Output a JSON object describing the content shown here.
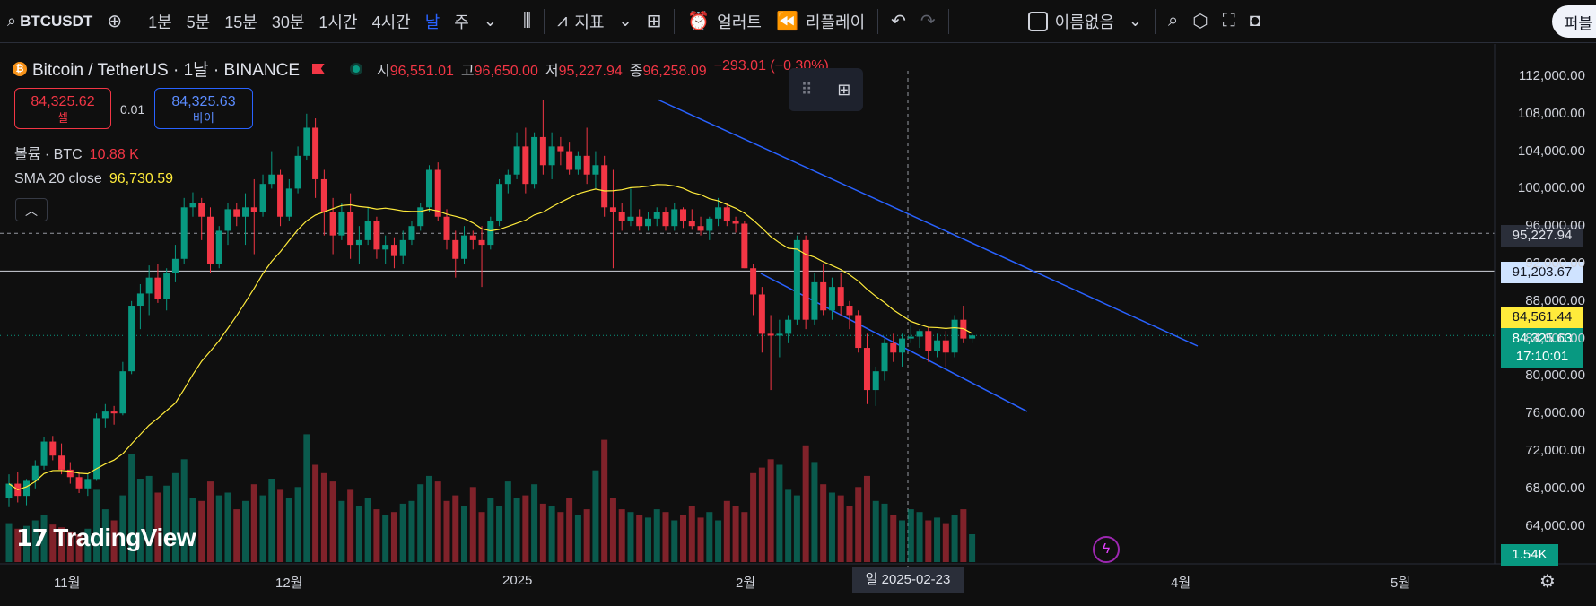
{
  "toolbar": {
    "symbol": "BTCUSDT",
    "intervals": [
      "1분",
      "5분",
      "15분",
      "30분",
      "1시간",
      "4시간",
      "날",
      "주"
    ],
    "active_interval": "날",
    "indicators_label": "지표",
    "alert_label": "얼러트",
    "replay_label": "리플레이",
    "layout_name": "이름없음",
    "publish_label": "퍼블"
  },
  "legend": {
    "title": "Bitcoin / TetherUS · 1날 · BINANCE",
    "open_label": "시",
    "open": "96,551.01",
    "high_label": "고",
    "high": "96,650.00",
    "low_label": "저",
    "low": "95,227.94",
    "close_label": "종",
    "close": "96,258.09",
    "change": "−293.01 (−0.30%)"
  },
  "trade": {
    "sell_price": "84,325.62",
    "sell_label": "셀",
    "spread": "0.01",
    "buy_price": "84,325.63",
    "buy_label": "바이"
  },
  "volume": {
    "label": "볼륨 · BTC",
    "value": "10.88 K"
  },
  "sma": {
    "label": "SMA 20 close",
    "value": "96,730.59"
  },
  "price_axis": {
    "labels": [
      "112,000.00",
      "108,000.00",
      "104,000.00",
      "100,000.00",
      "96,000.00",
      "92,000.00",
      "88,000.00",
      "84,000.00",
      "80,000.00",
      "76,000.00",
      "72,000.00",
      "68,000.00",
      "64,000.00"
    ],
    "crosshair_price": "95,227.94",
    "hline_price": "91,203.67",
    "sma_price": "84,561.44",
    "last_price": "84,325.63",
    "countdown": "17:10:01",
    "volume_tag": "1.54K"
  },
  "time_axis": {
    "labels": [
      "11월",
      "12월",
      "2025",
      "2월",
      "4월",
      "5월"
    ],
    "crosshair_date": "일 2025-02-23"
  },
  "branding": {
    "logo_text": "TradingView"
  },
  "colors": {
    "bg": "#0f0f0f",
    "up": "#089981",
    "down": "#f23645",
    "sma": "#ffeb3b",
    "trendline": "#2962ff",
    "accent": "#2962ff"
  },
  "chart_data": {
    "type": "candlestick",
    "symbol": "Bitcoin / TetherUS",
    "interval": "1D",
    "exchange": "BINANCE",
    "ylim": [
      62000,
      114000
    ],
    "candles": [
      {
        "o": 67000,
        "h": 69500,
        "l": 66000,
        "c": 68500
      },
      {
        "o": 68500,
        "h": 69800,
        "l": 66500,
        "c": 67200
      },
      {
        "o": 67200,
        "h": 69000,
        "l": 66200,
        "c": 68800
      },
      {
        "o": 68800,
        "h": 71000,
        "l": 68000,
        "c": 70400
      },
      {
        "o": 70400,
        "h": 73500,
        "l": 70000,
        "c": 73000
      },
      {
        "o": 73000,
        "h": 73600,
        "l": 71000,
        "c": 71500
      },
      {
        "o": 71500,
        "h": 72800,
        "l": 69500,
        "c": 70000
      },
      {
        "o": 70000,
        "h": 70800,
        "l": 68500,
        "c": 69200
      },
      {
        "o": 69200,
        "h": 69800,
        "l": 67500,
        "c": 68000
      },
      {
        "o": 68000,
        "h": 69500,
        "l": 67200,
        "c": 69000
      },
      {
        "o": 69000,
        "h": 76000,
        "l": 68800,
        "c": 75500
      },
      {
        "o": 75500,
        "h": 77000,
        "l": 74500,
        "c": 76200
      },
      {
        "o": 76200,
        "h": 76800,
        "l": 74800,
        "c": 76000
      },
      {
        "o": 76000,
        "h": 81500,
        "l": 75800,
        "c": 80500
      },
      {
        "o": 80500,
        "h": 88000,
        "l": 80200,
        "c": 87500
      },
      {
        "o": 87500,
        "h": 89800,
        "l": 85000,
        "c": 88800
      },
      {
        "o": 88800,
        "h": 91800,
        "l": 86500,
        "c": 90500
      },
      {
        "o": 90500,
        "h": 92000,
        "l": 87800,
        "c": 88200
      },
      {
        "o": 88200,
        "h": 91500,
        "l": 87000,
        "c": 91000
      },
      {
        "o": 91000,
        "h": 94000,
        "l": 90000,
        "c": 92500
      },
      {
        "o": 92500,
        "h": 99000,
        "l": 92000,
        "c": 98000
      },
      {
        "o": 98000,
        "h": 99600,
        "l": 97000,
        "c": 98500
      },
      {
        "o": 98500,
        "h": 99000,
        "l": 94500,
        "c": 97000
      },
      {
        "o": 97000,
        "h": 98000,
        "l": 91000,
        "c": 92000
      },
      {
        "o": 92000,
        "h": 96000,
        "l": 91500,
        "c": 95500
      },
      {
        "o": 95500,
        "h": 98500,
        "l": 94000,
        "c": 97800
      },
      {
        "o": 97800,
        "h": 98500,
        "l": 96000,
        "c": 97000
      },
      {
        "o": 97000,
        "h": 99500,
        "l": 94000,
        "c": 98000
      },
      {
        "o": 98000,
        "h": 101000,
        "l": 93000,
        "c": 97500
      },
      {
        "o": 97500,
        "h": 101500,
        "l": 97000,
        "c": 100500
      },
      {
        "o": 100500,
        "h": 104000,
        "l": 100000,
        "c": 101500
      },
      {
        "o": 101500,
        "h": 102000,
        "l": 96000,
        "c": 97000
      },
      {
        "o": 97000,
        "h": 101000,
        "l": 96500,
        "c": 100000
      },
      {
        "o": 100000,
        "h": 104500,
        "l": 99500,
        "c": 103500
      },
      {
        "o": 103500,
        "h": 108000,
        "l": 103000,
        "c": 106500
      },
      {
        "o": 106500,
        "h": 107500,
        "l": 99000,
        "c": 101000
      },
      {
        "o": 101000,
        "h": 102000,
        "l": 95000,
        "c": 97500
      },
      {
        "o": 97500,
        "h": 99000,
        "l": 93000,
        "c": 95000
      },
      {
        "o": 95000,
        "h": 98500,
        "l": 94500,
        "c": 97500
      },
      {
        "o": 97500,
        "h": 99500,
        "l": 92500,
        "c": 94000
      },
      {
        "o": 94000,
        "h": 96000,
        "l": 92000,
        "c": 94500
      },
      {
        "o": 94500,
        "h": 98000,
        "l": 94000,
        "c": 96500
      },
      {
        "o": 96500,
        "h": 97000,
        "l": 92500,
        "c": 93500
      },
      {
        "o": 93500,
        "h": 95000,
        "l": 92000,
        "c": 94000
      },
      {
        "o": 94000,
        "h": 94800,
        "l": 91500,
        "c": 92800
      },
      {
        "o": 92800,
        "h": 95500,
        "l": 92000,
        "c": 94500
      },
      {
        "o": 94500,
        "h": 96500,
        "l": 94000,
        "c": 96000
      },
      {
        "o": 96000,
        "h": 98500,
        "l": 95500,
        "c": 98000
      },
      {
        "o": 98000,
        "h": 102500,
        "l": 97500,
        "c": 102000
      },
      {
        "o": 102000,
        "h": 102800,
        "l": 96500,
        "c": 97000
      },
      {
        "o": 97000,
        "h": 97800,
        "l": 93500,
        "c": 94500
      },
      {
        "o": 94500,
        "h": 95500,
        "l": 90500,
        "c": 92500
      },
      {
        "o": 92500,
        "h": 96000,
        "l": 92000,
        "c": 95000
      },
      {
        "o": 95000,
        "h": 95500,
        "l": 93500,
        "c": 94500
      },
      {
        "o": 94500,
        "h": 96000,
        "l": 89500,
        "c": 94000
      },
      {
        "o": 94000,
        "h": 97000,
        "l": 93500,
        "c": 96500
      },
      {
        "o": 96500,
        "h": 101000,
        "l": 96000,
        "c": 100500
      },
      {
        "o": 100500,
        "h": 102000,
        "l": 99500,
        "c": 101500
      },
      {
        "o": 101500,
        "h": 106000,
        "l": 101000,
        "c": 104500
      },
      {
        "o": 104500,
        "h": 106500,
        "l": 99500,
        "c": 100500
      },
      {
        "o": 100500,
        "h": 106000,
        "l": 100000,
        "c": 105500
      },
      {
        "o": 105500,
        "h": 109500,
        "l": 101500,
        "c": 102500
      },
      {
        "o": 102500,
        "h": 106000,
        "l": 101000,
        "c": 104500
      },
      {
        "o": 104500,
        "h": 105500,
        "l": 102500,
        "c": 104000
      },
      {
        "o": 104000,
        "h": 105000,
        "l": 101500,
        "c": 102000
      },
      {
        "o": 102000,
        "h": 104000,
        "l": 101500,
        "c": 103500
      },
      {
        "o": 103500,
        "h": 106500,
        "l": 100500,
        "c": 101500
      },
      {
        "o": 101500,
        "h": 104000,
        "l": 100000,
        "c": 102500
      },
      {
        "o": 102500,
        "h": 103500,
        "l": 97000,
        "c": 98000
      },
      {
        "o": 98000,
        "h": 102000,
        "l": 91500,
        "c": 97500
      },
      {
        "o": 97500,
        "h": 98500,
        "l": 95500,
        "c": 96500
      },
      {
        "o": 96500,
        "h": 100000,
        "l": 96000,
        "c": 97000
      },
      {
        "o": 97000,
        "h": 97800,
        "l": 95500,
        "c": 96000
      },
      {
        "o": 96000,
        "h": 97500,
        "l": 95500,
        "c": 96800
      },
      {
        "o": 96800,
        "h": 98000,
        "l": 96000,
        "c": 97500
      },
      {
        "o": 97500,
        "h": 98000,
        "l": 95500,
        "c": 96000
      },
      {
        "o": 96000,
        "h": 98500,
        "l": 95500,
        "c": 97800
      },
      {
        "o": 97800,
        "h": 98000,
        "l": 95800,
        "c": 96500
      },
      {
        "o": 96500,
        "h": 97800,
        "l": 95600,
        "c": 96000
      },
      {
        "o": 96000,
        "h": 97000,
        "l": 95000,
        "c": 95500
      },
      {
        "o": 95500,
        "h": 97000,
        "l": 94500,
        "c": 96800
      },
      {
        "o": 96800,
        "h": 99000,
        "l": 96000,
        "c": 98000
      },
      {
        "o": 98000,
        "h": 98500,
        "l": 96000,
        "c": 96500
      },
      {
        "o": 96500,
        "h": 97000,
        "l": 95300,
        "c": 96258
      },
      {
        "o": 96258,
        "h": 96500,
        "l": 91500,
        "c": 91500
      },
      {
        "o": 91500,
        "h": 92000,
        "l": 86500,
        "c": 88700
      },
      {
        "o": 88700,
        "h": 89500,
        "l": 82500,
        "c": 84500
      },
      {
        "o": 84500,
        "h": 86500,
        "l": 78500,
        "c": 84300
      },
      {
        "o": 84300,
        "h": 86000,
        "l": 82000,
        "c": 84500
      },
      {
        "o": 84500,
        "h": 86500,
        "l": 83500,
        "c": 86000
      },
      {
        "o": 86000,
        "h": 95000,
        "l": 85500,
        "c": 94500
      },
      {
        "o": 94500,
        "h": 95000,
        "l": 85000,
        "c": 86000
      },
      {
        "o": 86000,
        "h": 91000,
        "l": 85500,
        "c": 90000
      },
      {
        "o": 90000,
        "h": 92000,
        "l": 86500,
        "c": 87000
      },
      {
        "o": 87000,
        "h": 90500,
        "l": 86000,
        "c": 89500
      },
      {
        "o": 89500,
        "h": 91000,
        "l": 86500,
        "c": 87500
      },
      {
        "o": 87500,
        "h": 88000,
        "l": 85000,
        "c": 86500
      },
      {
        "o": 86500,
        "h": 87000,
        "l": 82500,
        "c": 83000
      },
      {
        "o": 83000,
        "h": 84500,
        "l": 77000,
        "c": 78500
      },
      {
        "o": 78500,
        "h": 81000,
        "l": 76800,
        "c": 80500
      },
      {
        "o": 80500,
        "h": 84000,
        "l": 79500,
        "c": 83500
      },
      {
        "o": 83500,
        "h": 84500,
        "l": 81500,
        "c": 82500
      },
      {
        "o": 82500,
        "h": 84500,
        "l": 81000,
        "c": 84000
      },
      {
        "o": 84000,
        "h": 85500,
        "l": 83500,
        "c": 84200
      },
      {
        "o": 84200,
        "h": 85000,
        "l": 83000,
        "c": 84800
      },
      {
        "o": 84800,
        "h": 85200,
        "l": 81500,
        "c": 82700
      },
      {
        "o": 82700,
        "h": 84500,
        "l": 82000,
        "c": 83800
      },
      {
        "o": 83800,
        "h": 84800,
        "l": 81000,
        "c": 82500
      },
      {
        "o": 82500,
        "h": 86500,
        "l": 82000,
        "c": 86000
      },
      {
        "o": 86000,
        "h": 87500,
        "l": 83500,
        "c": 84000
      },
      {
        "o": 84000,
        "h": 84500,
        "l": 83500,
        "c": 84326
      }
    ],
    "volumes": [
      28,
      24,
      26,
      30,
      34,
      27,
      25,
      22,
      20,
      24,
      52,
      38,
      30,
      48,
      78,
      60,
      62,
      50,
      55,
      64,
      74,
      46,
      44,
      58,
      48,
      50,
      38,
      44,
      56,
      48,
      60,
      52,
      46,
      54,
      92,
      70,
      64,
      58,
      44,
      52,
      40,
      46,
      38,
      34,
      36,
      42,
      44,
      56,
      62,
      58,
      44,
      48,
      40,
      54,
      36,
      46,
      40,
      58,
      46,
      48,
      56,
      42,
      40,
      36,
      46,
      34,
      38,
      66,
      88,
      46,
      38,
      36,
      34,
      32,
      38,
      36,
      30,
      34,
      40,
      32,
      36,
      30,
      44,
      40,
      36,
      64,
      68,
      74,
      70,
      52,
      48,
      84,
      72,
      56,
      50,
      48,
      40,
      54,
      62,
      44,
      42,
      34,
      30,
      38,
      36,
      30,
      32,
      28,
      34,
      38,
      20
    ],
    "sma20_last": 84561.44,
    "horizontal_line": 91203.67,
    "crosshair_price": 95227.94
  }
}
